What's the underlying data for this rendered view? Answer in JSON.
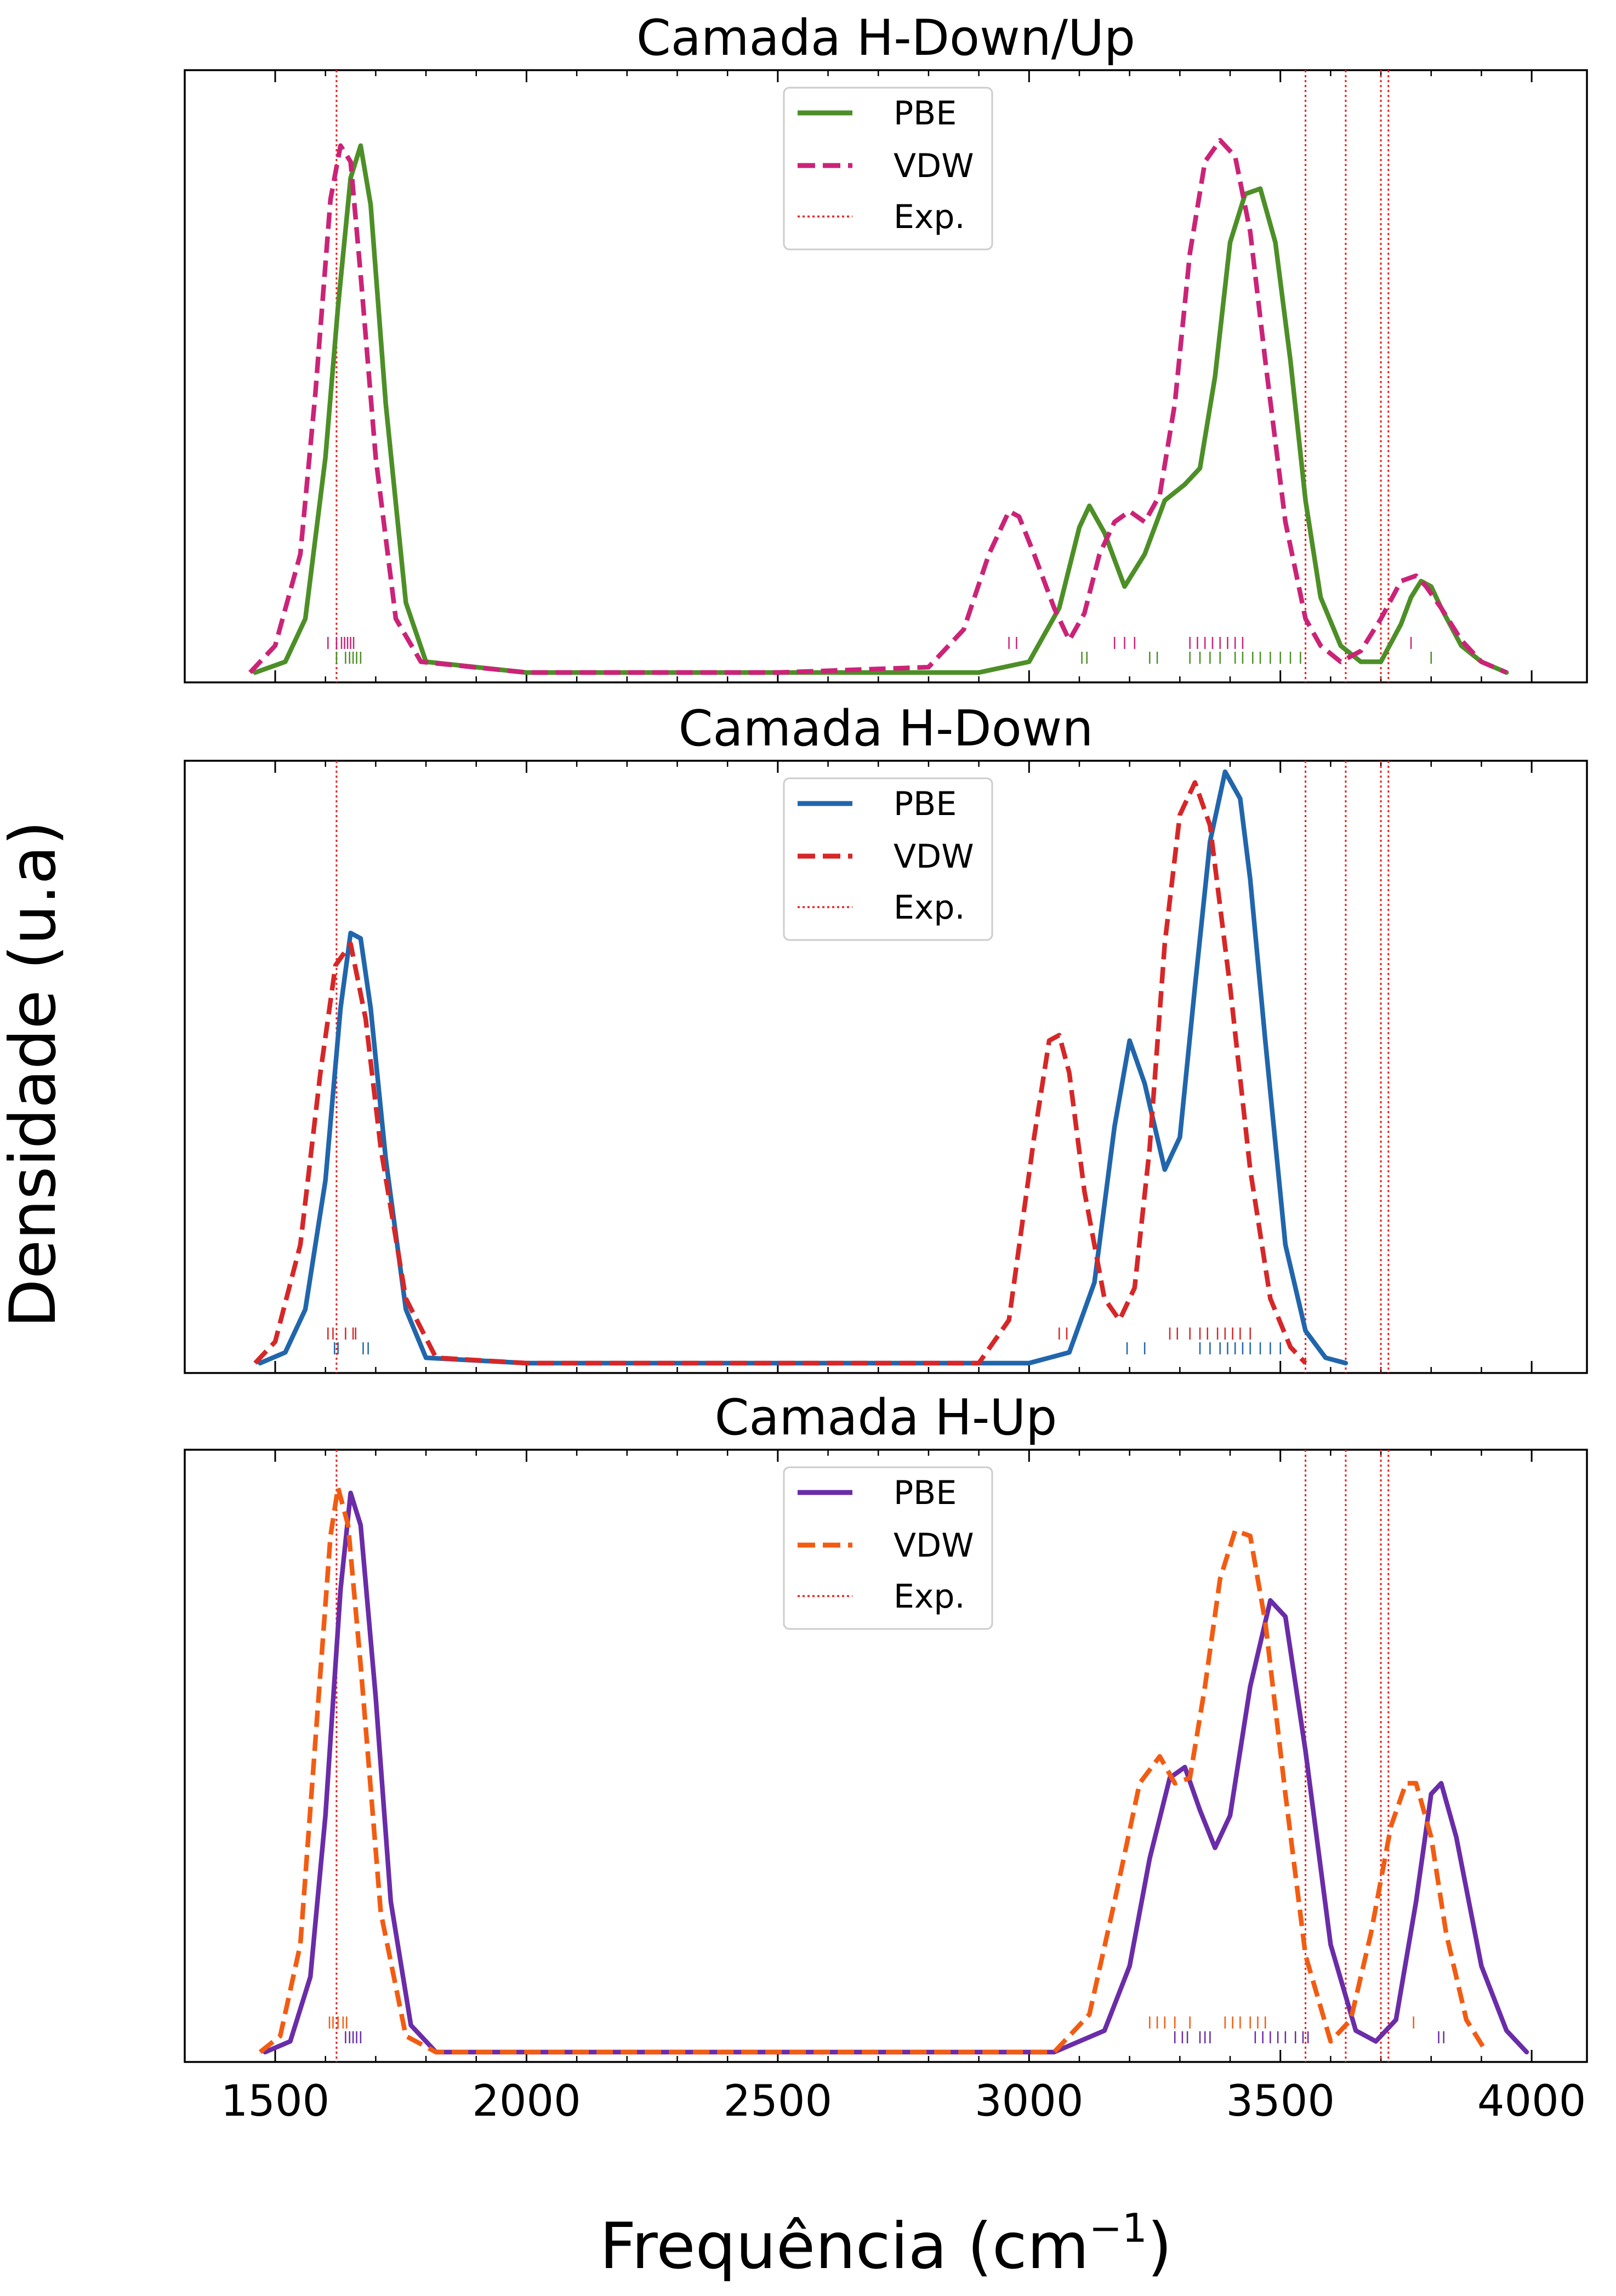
{
  "figure": {
    "ylabel": "Densidade (u.a)",
    "xlabel_main": "Frequência (cm",
    "xlabel_sup": "−1",
    "xlabel_close": ")"
  },
  "chart_data": [
    {
      "type": "line",
      "title": "Camada H-Down/Up",
      "xlim": [
        1320,
        4110
      ],
      "ylim": [
        0,
        1.1
      ],
      "grid": false,
      "legend": "top-center",
      "experimental_lines": [
        1622,
        3550,
        3630,
        3700,
        3715
      ],
      "series": [
        {
          "name": "PBE",
          "style": "solid",
          "color": "#4d8f27",
          "x": [
            1460,
            1520,
            1560,
            1600,
            1625,
            1650,
            1670,
            1690,
            1720,
            1760,
            1800,
            2000,
            2500,
            2900,
            3000,
            3060,
            3100,
            3120,
            3150,
            3190,
            3230,
            3270,
            3310,
            3340,
            3370,
            3400,
            3430,
            3460,
            3490,
            3520,
            3550,
            3580,
            3620,
            3660,
            3700,
            3740,
            3760,
            3780,
            3800,
            3820,
            3860,
            3900,
            3950
          ],
          "y": [
            0.0,
            0.02,
            0.1,
            0.4,
            0.68,
            0.92,
            0.98,
            0.87,
            0.5,
            0.13,
            0.02,
            0.0,
            0.0,
            0.0,
            0.02,
            0.12,
            0.27,
            0.31,
            0.26,
            0.16,
            0.22,
            0.32,
            0.35,
            0.38,
            0.55,
            0.8,
            0.89,
            0.9,
            0.8,
            0.58,
            0.32,
            0.14,
            0.05,
            0.02,
            0.02,
            0.09,
            0.14,
            0.17,
            0.16,
            0.12,
            0.05,
            0.02,
            0.0
          ]
        },
        {
          "name": "VDW",
          "style": "dashed",
          "color": "#cb2378",
          "x": [
            1450,
            1500,
            1550,
            1580,
            1610,
            1630,
            1650,
            1670,
            1700,
            1740,
            1790,
            2000,
            2500,
            2800,
            2870,
            2920,
            2960,
            2980,
            3010,
            3050,
            3080,
            3110,
            3140,
            3170,
            3200,
            3230,
            3260,
            3290,
            3320,
            3350,
            3380,
            3410,
            3440,
            3470,
            3510,
            3550,
            3580,
            3620,
            3660,
            3700,
            3740,
            3770,
            3790,
            3820,
            3860,
            3900,
            3950
          ],
          "y": [
            0.0,
            0.05,
            0.22,
            0.52,
            0.88,
            0.98,
            0.95,
            0.74,
            0.4,
            0.1,
            0.02,
            0.0,
            0.0,
            0.01,
            0.08,
            0.22,
            0.3,
            0.29,
            0.22,
            0.12,
            0.06,
            0.11,
            0.22,
            0.28,
            0.3,
            0.28,
            0.33,
            0.5,
            0.78,
            0.95,
            0.99,
            0.96,
            0.82,
            0.58,
            0.28,
            0.1,
            0.05,
            0.02,
            0.04,
            0.1,
            0.17,
            0.18,
            0.16,
            0.12,
            0.06,
            0.02,
            0.0
          ]
        },
        {
          "name": "Exp.",
          "style": "dotted",
          "color": "#ee2020",
          "x": [],
          "y": []
        }
      ],
      "rugs": [
        {
          "series": "VDW",
          "color": "#cb2378",
          "x": [
            1605,
            1622,
            1632,
            1638,
            1644,
            1650,
            1656,
            2960,
            2975,
            3170,
            3190,
            3210,
            3320,
            3335,
            3350,
            3365,
            3380,
            3395,
            3410,
            3425,
            3760
          ]
        },
        {
          "series": "PBE",
          "color": "#4d8f27",
          "x": [
            1622,
            1640,
            1648,
            1655,
            1662,
            1670,
            3105,
            3115,
            3240,
            3255,
            3320,
            3340,
            3360,
            3380,
            3410,
            3425,
            3445,
            3460,
            3480,
            3500,
            3520,
            3540,
            3800
          ]
        }
      ]
    },
    {
      "type": "line",
      "title": "Camada H-Down",
      "xlim": [
        1320,
        4110
      ],
      "ylim": [
        0,
        1.1
      ],
      "grid": false,
      "legend": "top-center",
      "experimental_lines": [
        1622,
        3550,
        3630,
        3700,
        3715
      ],
      "series": [
        {
          "name": "PBE",
          "style": "solid",
          "color": "#2166ac",
          "x": [
            1470,
            1520,
            1560,
            1600,
            1630,
            1650,
            1670,
            1690,
            1720,
            1760,
            1800,
            2000,
            2500,
            3000,
            3080,
            3130,
            3170,
            3200,
            3230,
            3270,
            3300,
            3330,
            3360,
            3390,
            3420,
            3440,
            3470,
            3510,
            3550,
            3590,
            3630
          ],
          "y": [
            0.0,
            0.02,
            0.1,
            0.34,
            0.66,
            0.8,
            0.79,
            0.66,
            0.38,
            0.1,
            0.01,
            0.0,
            0.0,
            0.0,
            0.02,
            0.15,
            0.44,
            0.6,
            0.52,
            0.36,
            0.42,
            0.7,
            0.97,
            1.1,
            1.05,
            0.9,
            0.6,
            0.22,
            0.06,
            0.01,
            0.0
          ],
          "peak_norm": 1.1
        },
        {
          "name": "VDW",
          "style": "dashed",
          "color": "#d62728",
          "x": [
            1460,
            1500,
            1550,
            1590,
            1620,
            1650,
            1680,
            1710,
            1760,
            1820,
            2000,
            2500,
            2900,
            2960,
            3010,
            3040,
            3060,
            3080,
            3110,
            3150,
            3180,
            3210,
            3240,
            3270,
            3300,
            3330,
            3360,
            3400,
            3440,
            3480,
            3520,
            3550
          ],
          "y": [
            0.0,
            0.04,
            0.22,
            0.54,
            0.74,
            0.78,
            0.64,
            0.4,
            0.12,
            0.01,
            0.0,
            0.0,
            0.0,
            0.08,
            0.42,
            0.6,
            0.61,
            0.54,
            0.32,
            0.12,
            0.08,
            0.14,
            0.4,
            0.78,
            1.02,
            1.08,
            1.0,
            0.7,
            0.36,
            0.12,
            0.03,
            0.0
          ]
        },
        {
          "name": "Exp.",
          "style": "dotted",
          "color": "#ee2020",
          "x": [],
          "y": []
        }
      ],
      "rugs": [
        {
          "series": "VDW",
          "color": "#d62728",
          "x": [
            1605,
            1615,
            1640,
            1655,
            1660,
            3060,
            3075,
            3280,
            3295,
            3320,
            3340,
            3355,
            3375,
            3390,
            3405,
            3420,
            3440
          ],
          "row": "top"
        },
        {
          "series": "PBE",
          "color": "#2166ac",
          "x": [
            1618,
            1625,
            1675,
            1685,
            3195,
            3230,
            3340,
            3360,
            3380,
            3395,
            3410,
            3425,
            3440,
            3460,
            3480,
            3500
          ],
          "row": "bottom"
        }
      ]
    },
    {
      "type": "line",
      "title": "Camada H-Up",
      "xlim": [
        1320,
        4110
      ],
      "ylim": [
        0,
        1.1
      ],
      "grid": false,
      "legend": "top-center",
      "experimental_lines": [
        1622,
        3550,
        3630,
        3700,
        3715
      ],
      "series": [
        {
          "name": "PBE",
          "style": "solid",
          "color": "#6a2ca8",
          "x": [
            1480,
            1530,
            1570,
            1600,
            1630,
            1650,
            1670,
            1700,
            1730,
            1770,
            1820,
            2000,
            2500,
            3050,
            3150,
            3200,
            3240,
            3280,
            3310,
            3340,
            3370,
            3400,
            3440,
            3480,
            3510,
            3550,
            3600,
            3650,
            3690,
            3730,
            3770,
            3800,
            3820,
            3850,
            3900,
            3950,
            3990
          ],
          "y": [
            0.0,
            0.02,
            0.14,
            0.44,
            0.86,
            1.04,
            0.98,
            0.66,
            0.28,
            0.05,
            0.0,
            0.0,
            0.0,
            0.0,
            0.04,
            0.16,
            0.36,
            0.51,
            0.53,
            0.45,
            0.38,
            0.44,
            0.68,
            0.84,
            0.81,
            0.56,
            0.2,
            0.04,
            0.02,
            0.06,
            0.28,
            0.48,
            0.5,
            0.4,
            0.16,
            0.04,
            0.0
          ]
        },
        {
          "name": "VDW",
          "style": "dashed",
          "color": "#f25c12",
          "x": [
            1470,
            1510,
            1550,
            1580,
            1610,
            1625,
            1645,
            1670,
            1710,
            1760,
            1820,
            2000,
            2500,
            3050,
            3120,
            3170,
            3220,
            3260,
            3290,
            3320,
            3350,
            3380,
            3410,
            3440,
            3470,
            3510,
            3550,
            3600,
            3640,
            3680,
            3720,
            3750,
            3770,
            3800,
            3830,
            3870,
            3910
          ],
          "y": [
            0.0,
            0.03,
            0.2,
            0.58,
            0.96,
            1.05,
            0.98,
            0.72,
            0.26,
            0.03,
            0.0,
            0.0,
            0.0,
            0.0,
            0.07,
            0.28,
            0.5,
            0.55,
            0.5,
            0.51,
            0.68,
            0.88,
            0.97,
            0.96,
            0.8,
            0.48,
            0.18,
            0.02,
            0.06,
            0.22,
            0.42,
            0.5,
            0.5,
            0.4,
            0.22,
            0.06,
            0.0
          ]
        },
        {
          "name": "Exp.",
          "style": "dotted",
          "color": "#ee2020",
          "x": [],
          "y": []
        }
      ],
      "rugs": [
        {
          "series": "VDW",
          "color": "#f25c12",
          "x": [
            1608,
            1615,
            1625,
            1635,
            1642,
            3240,
            3255,
            3270,
            3290,
            3320,
            3390,
            3405,
            3420,
            3440,
            3455,
            3470,
            3765
          ],
          "row": "top"
        },
        {
          "series": "PBE",
          "color": "#6a2ca8",
          "x": [
            1640,
            1648,
            1655,
            1662,
            1670,
            3290,
            3305,
            3315,
            3340,
            3350,
            3360,
            3450,
            3465,
            3480,
            3495,
            3510,
            3530,
            3545,
            3555,
            3815,
            3825
          ],
          "row": "bottom"
        }
      ]
    }
  ],
  "x_ticks": [
    "1500",
    "2000",
    "2500",
    "3000",
    "3500",
    "4000"
  ],
  "x_tick_values": [
    1500,
    2000,
    2500,
    3000,
    3500,
    4000
  ]
}
